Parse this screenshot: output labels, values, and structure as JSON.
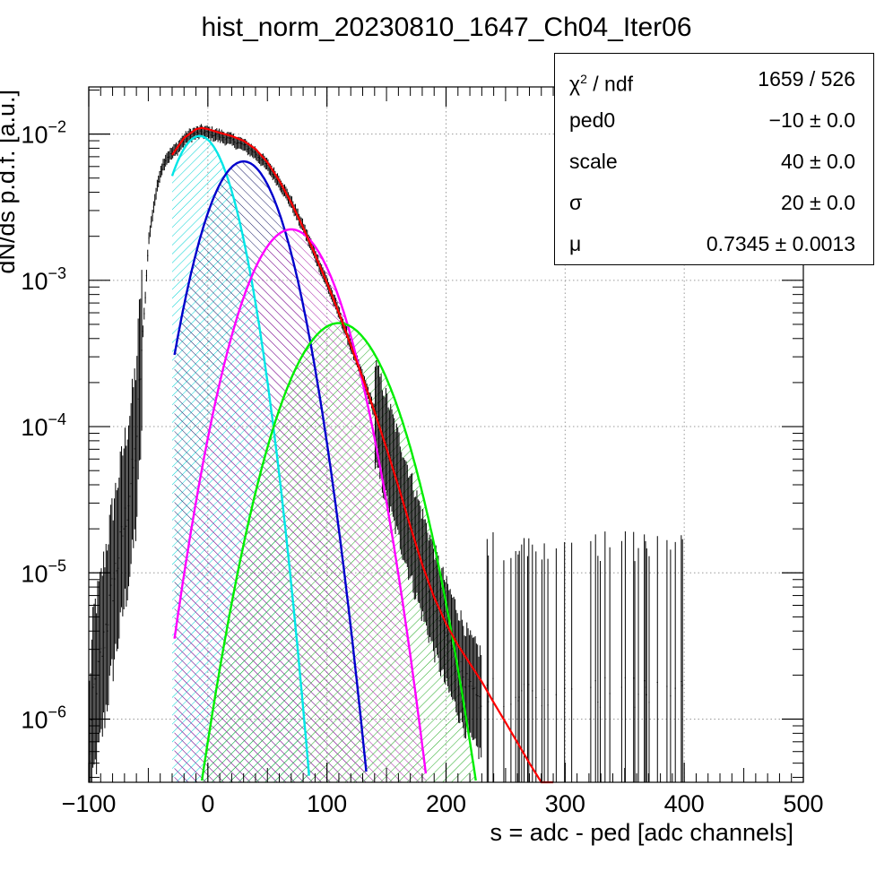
{
  "chart_data": {
    "type": "histogram",
    "title": "hist_norm_20230810_1647_Ch04_Iter06",
    "xlabel": "s = adc - ped [adc channels]",
    "ylabel": "dN/ds p.d.f. [a.u.]",
    "xlim": [
      -100,
      500
    ],
    "ylim": [
      3.7e-07,
      0.021
    ],
    "yscale": "log",
    "grid": true,
    "x_ticks": [
      "−100",
      "0",
      "100",
      "200",
      "300",
      "400",
      "500"
    ],
    "y_ticks": [
      {
        "base": "10",
        "exp": "−2",
        "value": 0.01
      },
      {
        "base": "10",
        "exp": "−3",
        "value": 0.001
      },
      {
        "base": "10",
        "exp": "−4",
        "value": 0.0001
      },
      {
        "base": "10",
        "exp": "−5",
        "value": 1e-05
      },
      {
        "base": "10",
        "exp": "−6",
        "value": 1e-06
      }
    ],
    "components": [
      {
        "color": "#00e6e6",
        "peak_x": -7,
        "peak_y": 0.0097,
        "sigma": 20.5,
        "x_start": -30,
        "hatch": "#00d4d4"
      },
      {
        "color": "#0000cc",
        "peak_x": 30,
        "peak_y": 0.0065,
        "sigma": 23.5,
        "x_start": -28,
        "hatch": "#1a1a66"
      },
      {
        "color": "#ff00ff",
        "peak_x": 70,
        "peak_y": 0.00223,
        "sigma": 27.3,
        "x_start": -28,
        "hatch": "#aa22aa"
      },
      {
        "color": "#00ee00",
        "peak_x": 110,
        "peak_y": 0.00051,
        "sigma": 30.3,
        "x_start": -28,
        "hatch": "#22aa22"
      }
    ],
    "total_fit": {
      "color": "#ff0000",
      "points": [
        [
          -30,
          0.0072
        ],
        [
          -20,
          0.0094
        ],
        [
          -10,
          0.0108
        ],
        [
          -5,
          0.011
        ],
        [
          0,
          0.0108
        ],
        [
          10,
          0.0102
        ],
        [
          20,
          0.0097
        ],
        [
          30,
          0.009
        ],
        [
          40,
          0.0079
        ],
        [
          50,
          0.0064
        ],
        [
          60,
          0.0048
        ],
        [
          70,
          0.0034
        ],
        [
          80,
          0.0023
        ],
        [
          90,
          0.0015
        ],
        [
          100,
          0.00096
        ],
        [
          110,
          0.0006
        ],
        [
          120,
          0.00036
        ],
        [
          130,
          0.000215
        ],
        [
          140,
          0.000126
        ],
        [
          150,
          7.1e-05
        ],
        [
          160,
          3.9e-05
        ],
        [
          170,
          2.08e-05
        ],
        [
          180,
          1.14e-05
        ],
        [
          190,
          6.8e-06
        ],
        [
          200,
          4.5e-06
        ],
        [
          210,
          3.2e-06
        ],
        [
          220,
          2.4e-06
        ],
        [
          230,
          1.8e-06
        ],
        [
          240,
          1.3e-06
        ],
        [
          250,
          9.5e-07
        ],
        [
          260,
          6.9e-07
        ],
        [
          270,
          5e-07
        ],
        [
          280,
          3.6e-07
        ],
        [
          290,
          2.5e-07
        ]
      ]
    },
    "data_envelope": [
      [
        -100,
        4e-07
      ],
      [
        -96,
        1.5e-06
      ],
      [
        -90,
        2.5e-06
      ],
      [
        -85,
        4.5e-06
      ],
      [
        -80,
        8e-06
      ],
      [
        -75,
        1.3e-05
      ],
      [
        -70,
        2.2e-05
      ],
      [
        -65,
        3.8e-05
      ],
      [
        -60,
        7.5e-05
      ],
      [
        -58,
        0.00015
      ],
      [
        -55,
        0.00038
      ],
      [
        -52,
        0.0009
      ],
      [
        -50,
        0.0018
      ],
      [
        -45,
        0.0034
      ],
      [
        -40,
        0.0055
      ],
      [
        -35,
        0.0068
      ],
      [
        -30,
        0.0074
      ],
      [
        -25,
        0.0081
      ],
      [
        -20,
        0.0091
      ],
      [
        -15,
        0.0098
      ],
      [
        -10,
        0.0101
      ],
      [
        -5,
        0.0104
      ],
      [
        0,
        0.0102
      ],
      [
        10,
        0.0097
      ],
      [
        20,
        0.0091
      ],
      [
        30,
        0.0084
      ],
      [
        40,
        0.0074
      ],
      [
        50,
        0.0061
      ],
      [
        60,
        0.0047
      ],
      [
        70,
        0.0034
      ],
      [
        80,
        0.0023
      ],
      [
        90,
        0.0015
      ],
      [
        100,
        0.00096
      ],
      [
        110,
        0.0006
      ],
      [
        120,
        0.00036
      ],
      [
        130,
        0.000215
      ],
      [
        140,
        0.000126
      ],
      [
        150,
        7.1e-05
      ],
      [
        160,
        3.9e-05
      ],
      [
        170,
        2.1e-05
      ],
      [
        180,
        1.15e-05
      ],
      [
        190,
        6.5e-06
      ],
      [
        200,
        3.8e-06
      ],
      [
        210,
        2.5e-06
      ],
      [
        220,
        1.6e-06
      ],
      [
        240,
        1e-06
      ],
      [
        260,
        8e-07
      ],
      [
        300,
        8e-07
      ],
      [
        350,
        8e-07
      ],
      [
        400,
        8e-07
      ]
    ],
    "stats": [
      {
        "label_main": "χ",
        "label_sup": "2",
        "label_rest": " / ndf",
        "value": "1659 / 526"
      },
      {
        "label_main": "ped0",
        "label_sup": "",
        "label_rest": "",
        "value": "−10 ± 0.0"
      },
      {
        "label_main": "scale",
        "label_sup": "",
        "label_rest": "",
        "value": "40 ± 0.0"
      },
      {
        "label_main": "σ",
        "label_sup": "",
        "label_rest": "",
        "value": "20 ± 0.0"
      },
      {
        "label_main": "μ",
        "label_sup": "",
        "label_rest": "",
        "value": "0.7345 ± 0.0013"
      }
    ]
  }
}
